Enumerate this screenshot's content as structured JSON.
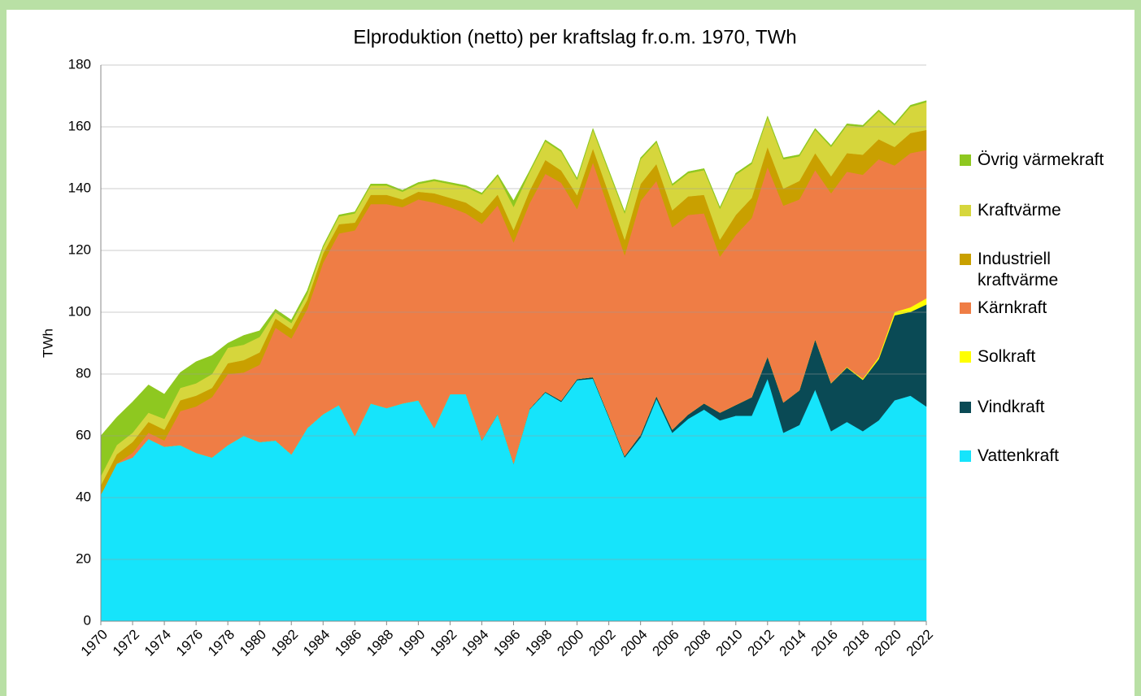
{
  "chart_data": {
    "type": "stacked_area",
    "title": "Elproduktion (netto) per kraftslag fr.o.m. 1970, TWh",
    "y_label": "TWh",
    "x": [
      1970,
      1971,
      1972,
      1973,
      1974,
      1975,
      1976,
      1977,
      1978,
      1979,
      1980,
      1981,
      1982,
      1983,
      1984,
      1985,
      1986,
      1987,
      1988,
      1989,
      1990,
      1991,
      1992,
      1993,
      1994,
      1995,
      1996,
      1997,
      1998,
      1999,
      2000,
      2001,
      2002,
      2003,
      2004,
      2005,
      2006,
      2007,
      2008,
      2009,
      2010,
      2011,
      2012,
      2013,
      2014,
      2015,
      2016,
      2017,
      2018,
      2019,
      2020,
      2021,
      2022
    ],
    "xlim": [
      1970,
      2022
    ],
    "xticks": [
      1970,
      1972,
      1974,
      1976,
      1978,
      1980,
      1982,
      1984,
      1986,
      1988,
      1990,
      1992,
      1994,
      1996,
      1998,
      2000,
      2002,
      2004,
      2006,
      2008,
      2010,
      2012,
      2014,
      2016,
      2018,
      2020,
      2022
    ],
    "ylim": [
      0,
      180
    ],
    "yticks": [
      0,
      20,
      40,
      60,
      80,
      100,
      120,
      140,
      160,
      180
    ],
    "grid": true,
    "series": [
      {
        "name": "Vattenkraft",
        "color": "#16e4fb",
        "values": [
          41,
          51,
          53,
          59,
          56.5,
          57,
          54.5,
          53,
          57,
          60,
          58,
          58.5,
          54,
          62.5,
          67,
          70,
          60,
          70.5,
          69,
          70.5,
          71.5,
          62.5,
          73.5,
          73.5,
          58.5,
          67,
          51,
          68.5,
          74,
          71,
          78,
          78.5,
          66,
          53,
          59.5,
          72,
          61,
          65.5,
          68.5,
          65,
          66.5,
          66.5,
          78.5,
          61,
          63.5,
          75,
          61.5,
          64.5,
          61.5,
          65,
          71.5,
          73,
          69.5
        ]
      },
      {
        "name": "Vindkraft",
        "color": "#0a4a55",
        "values": [
          0,
          0,
          0,
          0,
          0,
          0,
          0,
          0,
          0,
          0,
          0,
          0,
          0,
          0,
          0,
          0,
          0,
          0,
          0,
          0,
          0,
          0,
          0,
          0,
          0.1,
          0.1,
          0.1,
          0.2,
          0.3,
          0.4,
          0.4,
          0.5,
          0.5,
          0.5,
          0.9,
          0.9,
          1,
          1.4,
          2,
          2.5,
          3.5,
          6,
          7.2,
          9.8,
          11.2,
          16.3,
          15.5,
          17.6,
          16.6,
          19.8,
          27.5,
          27.1,
          33
        ]
      },
      {
        "name": "Solkraft",
        "color": "#ffff00",
        "values": [
          0,
          0,
          0,
          0,
          0,
          0,
          0,
          0,
          0,
          0,
          0,
          0,
          0,
          0,
          0,
          0,
          0,
          0,
          0,
          0,
          0,
          0,
          0,
          0,
          0,
          0,
          0,
          0,
          0,
          0,
          0,
          0,
          0,
          0,
          0,
          0,
          0,
          0,
          0,
          0,
          0,
          0,
          0,
          0,
          0,
          0,
          0.1,
          0.2,
          0.4,
          0.7,
          1.1,
          1.5,
          2
        ]
      },
      {
        "name": "Kärnkraft",
        "color": "#ef7d45",
        "values": [
          0,
          0,
          1.5,
          2,
          2,
          11,
          15,
          19.5,
          23,
          20.5,
          25,
          36.5,
          37.5,
          38.5,
          49,
          55.5,
          66.5,
          64.5,
          66,
          63.5,
          65,
          73,
          60.5,
          58.5,
          70,
          67.5,
          71.5,
          66.5,
          70.5,
          70.5,
          55,
          69.5,
          67,
          65,
          75.6,
          69.6,
          65.5,
          64.6,
          61.5,
          50.5,
          55,
          58,
          61.3,
          63.7,
          61.8,
          54.7,
          61.4,
          63.2,
          66,
          64,
          47.4,
          49.9,
          48
        ]
      },
      {
        "name": "Industriell kraftvärme",
        "color": "#c9a000",
        "values": [
          3,
          3,
          3.5,
          3.5,
          3.5,
          3.5,
          3.5,
          3,
          3.5,
          4,
          4,
          3,
          3,
          3,
          3,
          3,
          2.5,
          3,
          3,
          2.5,
          2.5,
          3,
          3,
          3.5,
          3.5,
          3.5,
          4,
          4,
          4.5,
          4,
          4.5,
          4.5,
          5,
          5,
          5.5,
          5.5,
          5.5,
          6,
          6,
          5.5,
          6.5,
          6.5,
          6.5,
          5.5,
          6,
          5.5,
          5.5,
          6,
          6.5,
          6.5,
          6,
          6.5,
          6.5
        ]
      },
      {
        "name": "Kraftvärme",
        "color": "#d6d63c",
        "values": [
          3,
          3,
          3,
          3,
          3.5,
          4,
          4,
          4.5,
          5,
          5,
          5,
          2,
          2,
          2,
          2,
          2.5,
          3,
          3,
          3,
          2.5,
          2.5,
          4,
          4.5,
          5,
          6,
          6,
          7.5,
          6,
          6,
          6,
          5,
          6,
          7,
          8.5,
          8,
          7,
          8,
          7.5,
          8,
          10,
          13,
          11,
          9.5,
          9.5,
          8,
          7.5,
          9.5,
          9,
          9,
          9,
          7,
          8.5,
          9
        ]
      },
      {
        "name": "Övrig värmekraft",
        "color": "#8ec820",
        "values": [
          13,
          9,
          10,
          9,
          8,
          5,
          7,
          6,
          1.5,
          3,
          2,
          1,
          1,
          1,
          0.5,
          0.5,
          0.5,
          0.5,
          0.5,
          0.5,
          0.5,
          0.5,
          0.5,
          0.5,
          0.5,
          0.5,
          2,
          0.5,
          0.5,
          0.5,
          0.5,
          0.5,
          0.5,
          0.5,
          0.5,
          0.5,
          0.5,
          0.5,
          0.5,
          0.5,
          0.5,
          0.5,
          0.5,
          0.5,
          0.5,
          0.5,
          0.5,
          0.5,
          0.5,
          0.5,
          0.5,
          0.5,
          0.5
        ]
      }
    ]
  }
}
